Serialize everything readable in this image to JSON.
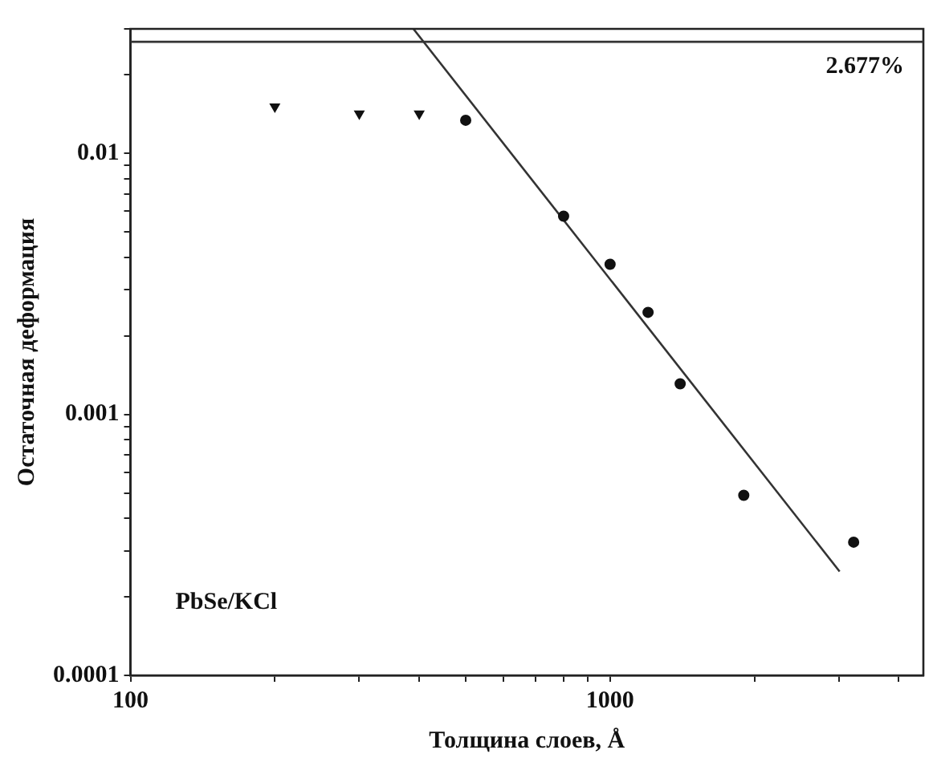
{
  "chart_data": {
    "type": "scatter",
    "xlabel": "Толщина слоев, Å",
    "ylabel": "Остаточная деформация",
    "log": "xy",
    "xlim": [
      100,
      4500
    ],
    "ylim": [
      0.0001,
      0.03
    ],
    "xticks": [
      100,
      {
        "value": 200,
        "label": null
      },
      {
        "value": 300,
        "label": null
      },
      {
        "value": 400,
        "label": null
      },
      {
        "value": 500,
        "label": null
      },
      {
        "value": 600,
        "label": null
      },
      {
        "value": 700,
        "label": null
      },
      {
        "value": 800,
        "label": null
      },
      {
        "value": 900,
        "label": null
      },
      1000,
      {
        "value": 2000,
        "label": null
      },
      {
        "value": 3000,
        "label": null
      },
      {
        "value": 4000,
        "label": null
      }
    ],
    "yticks": [
      0.0001,
      {
        "value": 0.0002,
        "label": null
      },
      {
        "value": 0.0003,
        "label": null
      },
      {
        "value": 0.0004,
        "label": null
      },
      {
        "value": 0.0005,
        "label": null
      },
      {
        "value": 0.0006,
        "label": null
      },
      {
        "value": 0.0007,
        "label": null
      },
      {
        "value": 0.0008,
        "label": null
      },
      {
        "value": 0.0009,
        "label": null
      },
      0.001,
      {
        "value": 0.002,
        "label": null
      },
      {
        "value": 0.003,
        "label": null
      },
      {
        "value": 0.004,
        "label": null
      },
      {
        "value": 0.005,
        "label": null
      },
      {
        "value": 0.006,
        "label": null
      },
      {
        "value": 0.007,
        "label": null
      },
      {
        "value": 0.008,
        "label": null
      },
      {
        "value": 0.009,
        "label": null
      },
      0.01,
      {
        "value": 0.02,
        "label": null
      },
      {
        "value": 0.03,
        "label": null
      }
    ],
    "grid": false,
    "legend": false,
    "series": [
      {
        "type": "scatter",
        "color": "#111111",
        "marker": "triangle",
        "x": [
          200,
          300,
          400
        ],
        "values": [
          0.0151,
          0.0142,
          0.0142
        ]
      },
      {
        "type": "scatter",
        "color": "#111111",
        "marker": "circle",
        "x": [
          500,
          800,
          1000,
          1200,
          1400,
          1900,
          3220
        ],
        "values": [
          0.0134,
          0.00575,
          0.00376,
          0.00246,
          0.00131,
          0.00049,
          0.000324
        ]
      },
      {
        "type": "line",
        "color": "#333333",
        "marker": "none",
        "line_style": "solid",
        "x": [
          389,
          3010
        ],
        "values": [
          0.03,
          0.00025
        ]
      }
    ],
    "ref_lines": [
      {
        "axis": "y",
        "value": 0.02677,
        "label": "2.677%",
        "color": "#333333"
      }
    ],
    "annotations": [
      "PbSe/KCl"
    ]
  }
}
